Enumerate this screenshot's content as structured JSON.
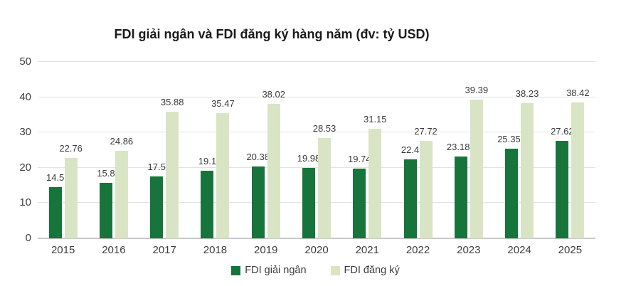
{
  "chart_data": {
    "type": "bar",
    "title": "FDI giải ngân và FDI đăng ký hàng năm (đv: tỷ USD)",
    "categories": [
      "2015",
      "2016",
      "2017",
      "2018",
      "2019",
      "2020",
      "2021",
      "2022",
      "2023",
      "2024",
      "2025"
    ],
    "series": [
      {
        "id": "fdi-giai-ngan",
        "name": "FDI giải ngân",
        "color": "#17743a",
        "values": [
          14.5,
          15.8,
          17.5,
          19.1,
          20.38,
          19.98,
          19.74,
          22.4,
          23.183,
          25.351,
          27.62
        ]
      },
      {
        "id": "fdi-dang-ky",
        "name": "FDI đăng ký",
        "color": "#d9e4c5",
        "values": [
          22.76,
          24.86,
          35.88,
          35.47,
          38.02,
          28.53,
          31.15,
          27.72,
          39.39,
          38.23,
          38.42
        ]
      }
    ],
    "ylim": [
      0,
      50
    ],
    "yticks": [
      0,
      10,
      20,
      30,
      40,
      50
    ],
    "grid": true,
    "value_labels": true,
    "legend_position": "bottom",
    "colors": {
      "gridline": "#e2e2e2",
      "axis_line": "#c9c9c9",
      "text": "#3d3d3d",
      "title_text": "#1a1a1a"
    }
  }
}
